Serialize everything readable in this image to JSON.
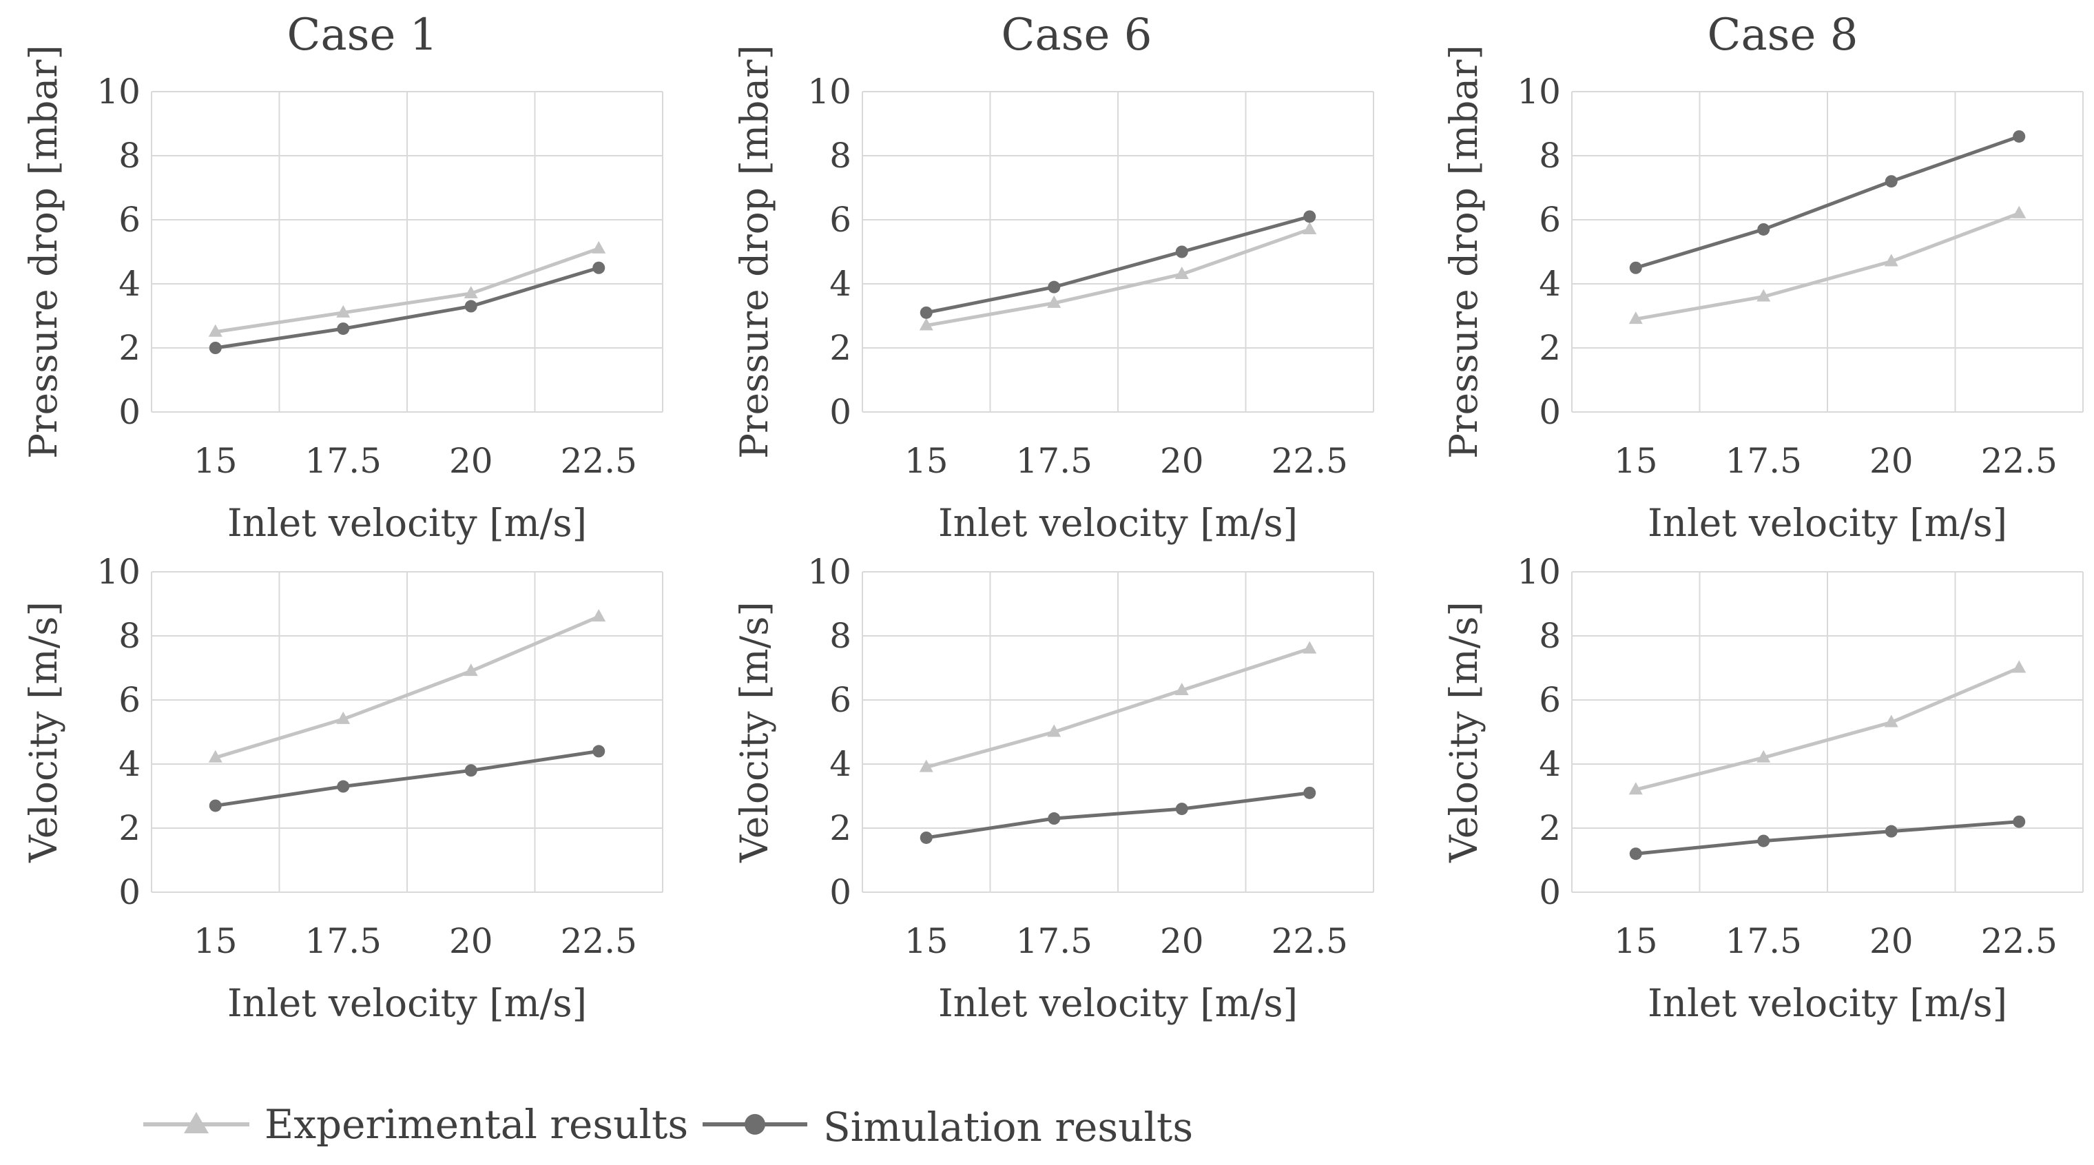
{
  "figure": {
    "legend": {
      "experimental": "Experimental results",
      "simulation": "Simulation results"
    },
    "colors": {
      "experimental": "#c4c4c4",
      "simulation": "#6e6e6e",
      "grid": "#d9d9d9",
      "text": "#404040"
    }
  },
  "chart_data": [
    {
      "type": "line",
      "title": "Case 1",
      "xlabel": "Inlet velocity [m/s]",
      "ylabel": "Pressure drop [mbar]",
      "categories": [
        "15",
        "17.5",
        "20",
        "22.5"
      ],
      "ylim": [
        0,
        10
      ],
      "yticks": [
        "0",
        "2",
        "4",
        "6",
        "8",
        "10"
      ],
      "series": [
        {
          "name": "Experimental results",
          "marker": "triangle",
          "values": [
            2.5,
            3.1,
            3.7,
            5.1
          ]
        },
        {
          "name": "Simulation results",
          "marker": "circle",
          "values": [
            2.0,
            2.6,
            3.3,
            4.5
          ]
        }
      ]
    },
    {
      "type": "line",
      "title": "Case 6",
      "xlabel": "Inlet velocity [m/s]",
      "ylabel": "Pressure drop [mbar]",
      "categories": [
        "15",
        "17.5",
        "20",
        "22.5"
      ],
      "ylim": [
        0,
        10
      ],
      "yticks": [
        "0",
        "2",
        "4",
        "6",
        "8",
        "10"
      ],
      "series": [
        {
          "name": "Experimental results",
          "marker": "triangle",
          "values": [
            2.7,
            3.4,
            4.3,
            5.7
          ]
        },
        {
          "name": "Simulation results",
          "marker": "circle",
          "values": [
            3.1,
            3.9,
            5.0,
            6.1
          ]
        }
      ]
    },
    {
      "type": "line",
      "title": "Case 8",
      "xlabel": "Inlet velocity [m/s]",
      "ylabel": "Pressure drop [mbar]",
      "categories": [
        "15",
        "17.5",
        "20",
        "22.5"
      ],
      "ylim": [
        0,
        10
      ],
      "yticks": [
        "0",
        "2",
        "4",
        "6",
        "8",
        "10"
      ],
      "series": [
        {
          "name": "Experimental results",
          "marker": "triangle",
          "values": [
            2.9,
            3.6,
            4.7,
            6.2
          ]
        },
        {
          "name": "Simulation results",
          "marker": "circle",
          "values": [
            4.5,
            5.7,
            7.2,
            8.6
          ]
        }
      ]
    },
    {
      "type": "line",
      "title": "",
      "xlabel": "Inlet velocity [m/s]",
      "ylabel": "Velocity [m/s]",
      "categories": [
        "15",
        "17.5",
        "20",
        "22.5"
      ],
      "ylim": [
        0,
        10
      ],
      "yticks": [
        "0",
        "2",
        "4",
        "6",
        "8",
        "10"
      ],
      "series": [
        {
          "name": "Experimental results",
          "marker": "triangle",
          "values": [
            4.2,
            5.4,
            6.9,
            8.6
          ]
        },
        {
          "name": "Simulation results",
          "marker": "circle",
          "values": [
            2.7,
            3.3,
            3.8,
            4.4
          ]
        }
      ]
    },
    {
      "type": "line",
      "title": "",
      "xlabel": "Inlet velocity [m/s]",
      "ylabel": "Velocity [m/s]",
      "categories": [
        "15",
        "17.5",
        "20",
        "22.5"
      ],
      "ylim": [
        0,
        10
      ],
      "yticks": [
        "0",
        "2",
        "4",
        "6",
        "8",
        "10"
      ],
      "series": [
        {
          "name": "Experimental results",
          "marker": "triangle",
          "values": [
            3.9,
            5.0,
            6.3,
            7.6
          ]
        },
        {
          "name": "Simulation results",
          "marker": "circle",
          "values": [
            1.7,
            2.3,
            2.6,
            3.1
          ]
        }
      ]
    },
    {
      "type": "line",
      "title": "",
      "xlabel": "Inlet velocity [m/s]",
      "ylabel": "Velocity [m/s]",
      "categories": [
        "15",
        "17.5",
        "20",
        "22.5"
      ],
      "ylim": [
        0,
        10
      ],
      "yticks": [
        "0",
        "2",
        "4",
        "6",
        "8",
        "10"
      ],
      "series": [
        {
          "name": "Experimental results",
          "marker": "triangle",
          "values": [
            3.2,
            4.2,
            5.3,
            7.0
          ]
        },
        {
          "name": "Simulation results",
          "marker": "circle",
          "values": [
            1.2,
            1.6,
            1.9,
            2.2
          ]
        }
      ]
    }
  ]
}
